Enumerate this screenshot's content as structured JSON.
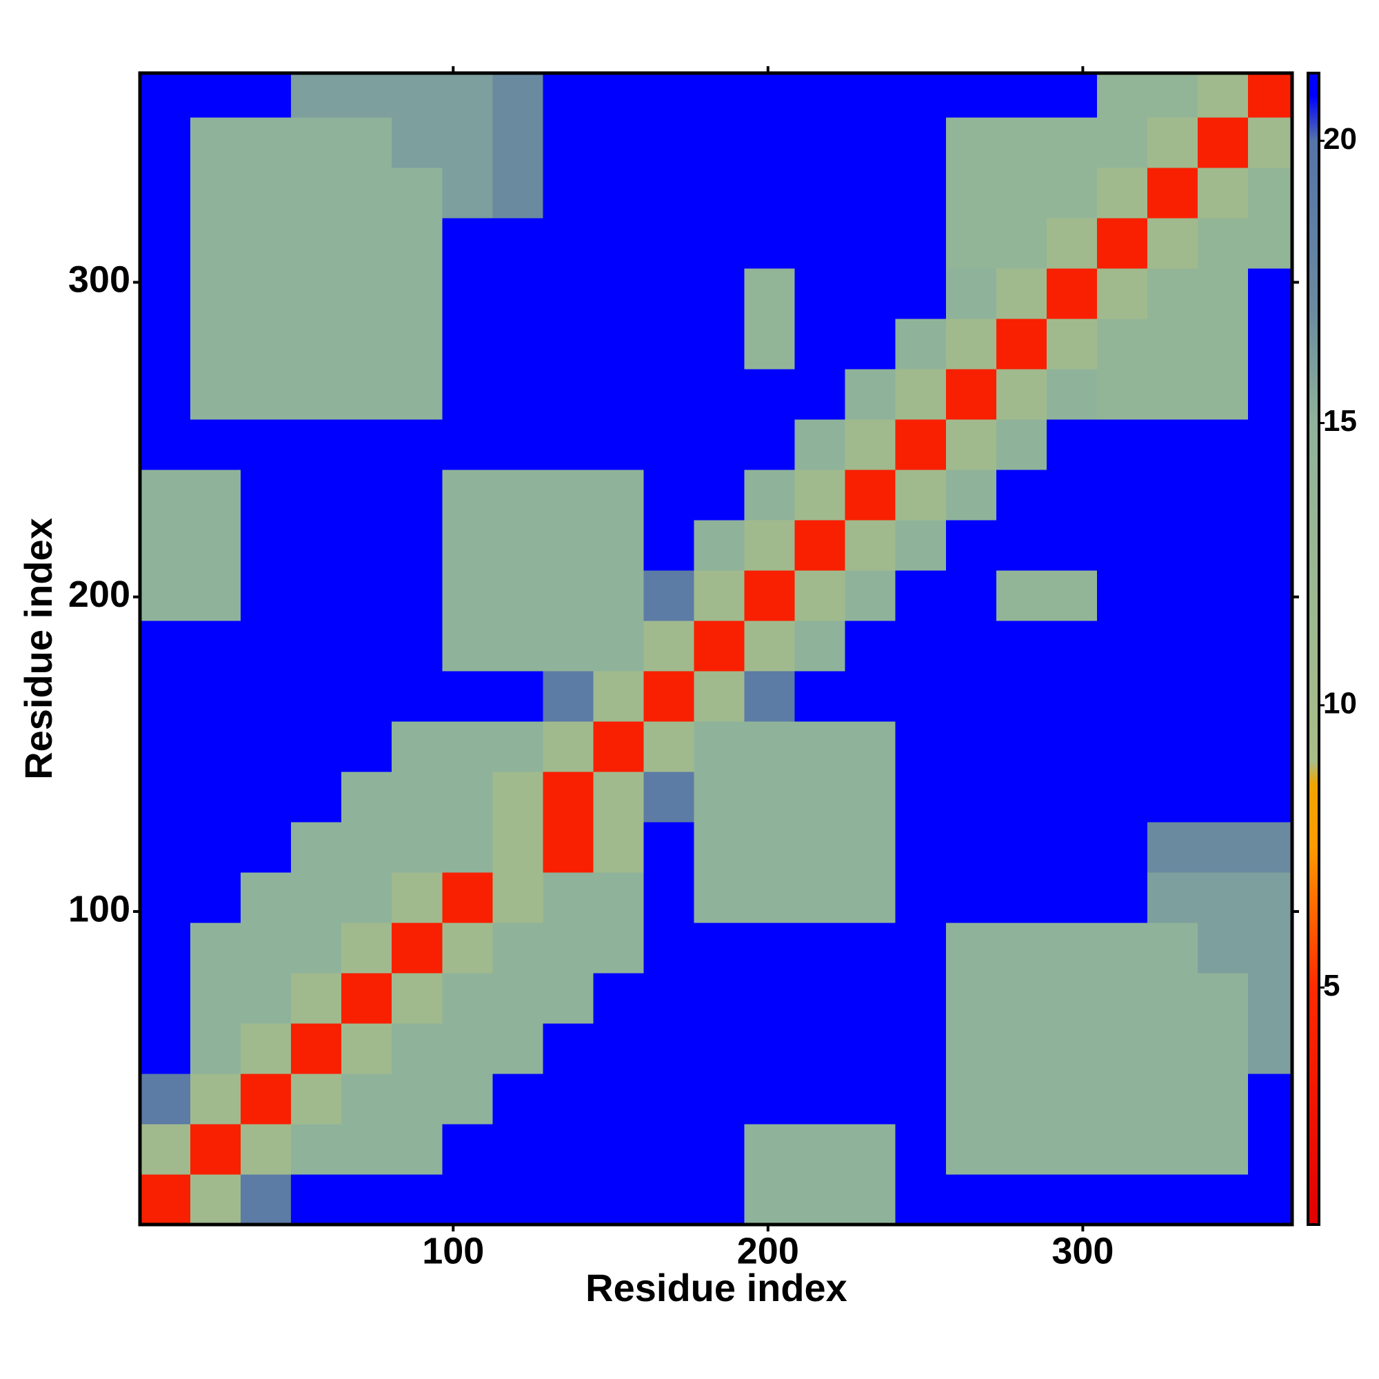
{
  "chart_data": {
    "type": "heatmap",
    "x_label": "Residue index",
    "y_label": "Residue index",
    "xbins": [
      0.5,
      16.5,
      32.5,
      48.5,
      64.5,
      80.5,
      96.5,
      112.5,
      128.5,
      144.5,
      160.5,
      176.5,
      192.5,
      208.5,
      224.5,
      240.5,
      256.5,
      272.5,
      288.5,
      304.5,
      320.5,
      336.5,
      352.5,
      366.5
    ],
    "ybins": [
      0.5,
      16.5,
      32.5,
      48.5,
      64.5,
      80.5,
      96.5,
      112.5,
      128.5,
      144.5,
      160.5,
      176.5,
      192.5,
      208.5,
      224.5,
      240.5,
      256.5,
      272.5,
      288.5,
      304.5,
      320.5,
      336.5,
      352.5,
      366.5
    ],
    "values": [
      [
        4,
        11,
        19,
        21,
        21,
        21,
        21,
        21,
        21,
        21,
        21,
        21,
        15,
        15,
        15,
        21,
        21,
        21,
        21,
        21,
        21,
        21,
        21
      ],
      [
        11,
        4,
        11,
        15,
        15,
        15,
        21,
        21,
        21,
        21,
        21,
        21,
        15,
        15,
        15,
        21,
        15,
        15,
        15,
        15,
        15,
        15,
        21
      ],
      [
        19,
        11,
        4,
        11,
        15,
        15,
        15,
        21,
        21,
        21,
        21,
        21,
        21,
        21,
        21,
        21,
        15,
        15,
        15,
        15,
        15,
        15,
        21
      ],
      [
        21,
        15,
        11,
        4,
        11,
        15,
        15,
        15,
        21,
        21,
        21,
        21,
        21,
        21,
        21,
        21,
        15,
        15,
        15,
        15,
        15,
        15,
        16
      ],
      [
        21,
        15,
        15,
        11,
        4,
        11,
        15,
        15,
        15,
        21,
        21,
        21,
        21,
        21,
        21,
        21,
        15,
        15,
        15,
        15,
        15,
        15,
        16
      ],
      [
        21,
        15,
        15,
        15,
        11,
        4,
        11,
        15,
        15,
        15,
        21,
        21,
        21,
        21,
        21,
        21,
        15,
        15,
        15,
        15,
        15,
        16,
        16
      ],
      [
        21,
        21,
        15,
        15,
        15,
        11,
        4,
        11,
        15,
        15,
        21,
        15,
        15,
        15,
        15,
        21,
        21,
        21,
        21,
        21,
        16,
        16,
        16
      ],
      [
        21,
        21,
        21,
        15,
        15,
        15,
        15,
        11,
        4,
        11,
        21,
        15,
        15,
        15,
        15,
        21,
        21,
        21,
        21,
        21,
        17,
        17,
        17
      ],
      [
        21,
        21,
        21,
        21,
        15,
        15,
        15,
        11,
        4,
        11,
        19,
        15,
        15,
        15,
        15,
        21,
        21,
        21,
        21,
        21,
        21,
        21,
        21
      ],
      [
        21,
        21,
        21,
        21,
        21,
        15,
        15,
        15,
        11,
        4,
        11,
        15,
        15,
        15,
        15,
        21,
        21,
        21,
        21,
        21,
        21,
        21,
        21
      ],
      [
        21,
        21,
        21,
        21,
        21,
        21,
        21,
        21,
        19,
        11,
        4,
        11,
        19,
        21,
        21,
        21,
        21,
        21,
        21,
        21,
        21,
        21,
        21
      ],
      [
        21,
        21,
        21,
        21,
        21,
        21,
        15,
        15,
        15,
        15,
        11,
        4,
        11,
        15,
        21,
        21,
        21,
        21,
        21,
        21,
        21,
        21,
        21
      ],
      [
        15,
        15,
        21,
        21,
        21,
        21,
        15,
        15,
        15,
        15,
        19,
        11,
        4,
        11,
        15,
        21,
        21,
        14,
        14,
        21,
        21,
        21,
        21
      ],
      [
        15,
        15,
        21,
        21,
        21,
        21,
        15,
        15,
        15,
        15,
        21,
        15,
        11,
        4,
        11,
        15,
        21,
        21,
        21,
        21,
        21,
        21,
        21
      ],
      [
        15,
        15,
        21,
        21,
        21,
        21,
        15,
        15,
        15,
        15,
        21,
        21,
        15,
        11,
        4,
        11,
        15,
        21,
        21,
        21,
        21,
        21,
        21
      ],
      [
        21,
        21,
        21,
        21,
        21,
        21,
        21,
        21,
        21,
        21,
        21,
        21,
        21,
        15,
        11,
        4,
        11,
        15,
        21,
        21,
        21,
        21,
        21
      ],
      [
        21,
        15,
        15,
        15,
        15,
        15,
        21,
        21,
        21,
        21,
        21,
        21,
        21,
        21,
        15,
        11,
        4,
        11,
        15,
        14,
        14,
        14,
        21
      ],
      [
        21,
        15,
        15,
        15,
        15,
        15,
        21,
        21,
        21,
        21,
        21,
        21,
        14,
        21,
        21,
        15,
        11,
        4,
        11,
        14,
        14,
        14,
        21
      ],
      [
        21,
        15,
        15,
        15,
        15,
        15,
        21,
        21,
        21,
        21,
        21,
        21,
        14,
        21,
        21,
        21,
        15,
        11,
        4,
        11,
        14,
        14,
        21
      ],
      [
        21,
        15,
        15,
        15,
        15,
        15,
        21,
        21,
        21,
        21,
        21,
        21,
        21,
        21,
        21,
        21,
        14,
        14,
        11,
        4,
        11,
        14,
        14
      ],
      [
        21,
        15,
        15,
        15,
        15,
        15,
        16,
        17,
        21,
        21,
        21,
        21,
        21,
        21,
        21,
        21,
        14,
        14,
        14,
        11,
        4,
        11,
        14
      ],
      [
        21,
        15,
        15,
        15,
        15,
        16,
        16,
        17,
        21,
        21,
        21,
        21,
        21,
        21,
        21,
        21,
        14,
        14,
        14,
        14,
        11,
        4,
        11
      ],
      [
        21,
        21,
        21,
        16,
        16,
        16,
        16,
        17,
        21,
        21,
        21,
        21,
        21,
        21,
        21,
        21,
        21,
        21,
        21,
        14,
        14,
        11,
        4
      ]
    ],
    "xlim": [
      0.5,
      366.5
    ],
    "ylim": [
      0.5,
      366.5
    ],
    "xticks": [
      100,
      200,
      300
    ],
    "yticks": [
      100,
      200,
      300
    ],
    "colorbar": {
      "lim": [
        0.8,
        21.2
      ],
      "ticks": [
        5,
        10,
        15,
        20
      ]
    },
    "colorscale": [
      [
        0.8,
        "#e00000"
      ],
      [
        5,
        "#ff2a00"
      ],
      [
        7.5,
        "#ff9a00"
      ],
      [
        8.6,
        "#f0a500"
      ],
      [
        9,
        "#a8bd88"
      ],
      [
        15,
        "#8fb39a"
      ],
      [
        17,
        "#6a8aa0"
      ],
      [
        20,
        "#5574a8"
      ],
      [
        20.8,
        "#0000ff"
      ],
      [
        21.2,
        "#0000ff"
      ]
    ]
  }
}
